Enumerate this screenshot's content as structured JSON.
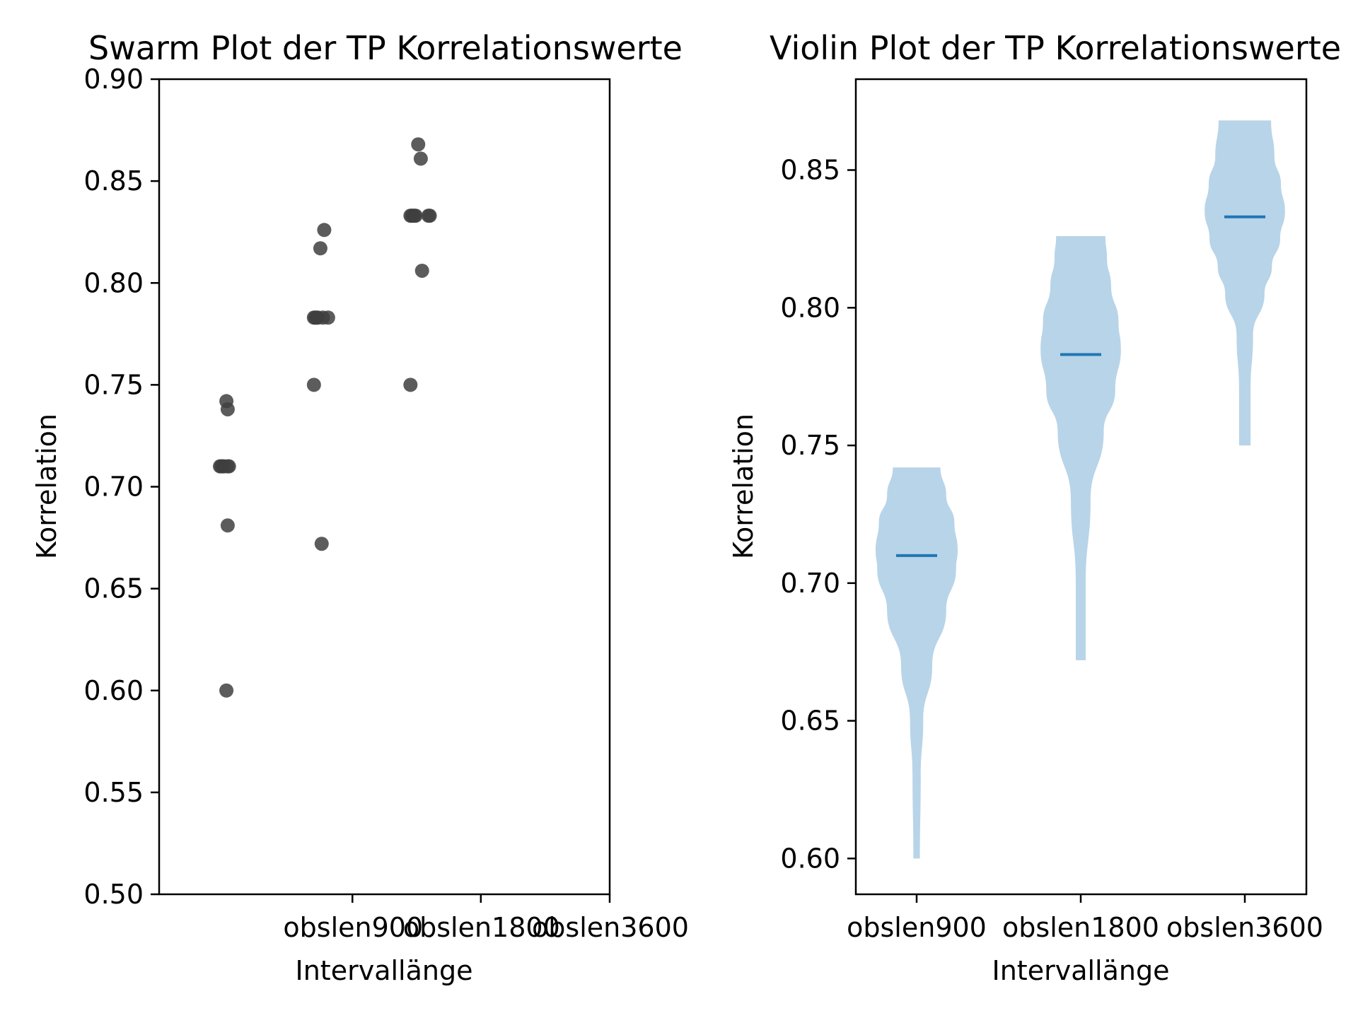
{
  "chart_data": [
    {
      "type": "scatter",
      "subtype": "swarm",
      "title": "Swarm Plot der TP Korrelationswerte",
      "xlabel": "Intervallänge",
      "ylabel": "Korrelation",
      "ylim": [
        0.5,
        0.9
      ],
      "yticks": [
        "0.50",
        "0.55",
        "0.60",
        "0.65",
        "0.70",
        "0.75",
        "0.80",
        "0.85",
        "0.90"
      ],
      "xticks": [
        "obslen900",
        "obslen1800",
        "obslen3600"
      ],
      "marker_color": "#404040",
      "series": [
        {
          "name": "obslen900",
          "points": [
            {
              "x": 0.26,
              "y": 0.742
            },
            {
              "x": 0.27,
              "y": 0.738
            },
            {
              "x": 0.21,
              "y": 0.71
            },
            {
              "x": 0.22,
              "y": 0.71
            },
            {
              "x": 0.23,
              "y": 0.71
            },
            {
              "x": 0.24,
              "y": 0.71
            },
            {
              "x": 0.27,
              "y": 0.71
            },
            {
              "x": 0.28,
              "y": 0.71
            },
            {
              "x": 0.27,
              "y": 0.681
            },
            {
              "x": 0.26,
              "y": 0.6
            }
          ]
        },
        {
          "name": "obslen1800",
          "points": [
            {
              "x": 1.02,
              "y": 0.826
            },
            {
              "x": 0.99,
              "y": 0.817
            },
            {
              "x": 0.94,
              "y": 0.783
            },
            {
              "x": 0.95,
              "y": 0.783
            },
            {
              "x": 0.96,
              "y": 0.783
            },
            {
              "x": 0.97,
              "y": 0.783
            },
            {
              "x": 1.01,
              "y": 0.783
            },
            {
              "x": 1.05,
              "y": 0.783
            },
            {
              "x": 0.94,
              "y": 0.75
            },
            {
              "x": 1.0,
              "y": 0.672
            }
          ]
        },
        {
          "name": "obslen3600",
          "points": [
            {
              "x": 1.75,
              "y": 0.868
            },
            {
              "x": 1.77,
              "y": 0.861
            },
            {
              "x": 1.69,
              "y": 0.833
            },
            {
              "x": 1.7,
              "y": 0.833
            },
            {
              "x": 1.71,
              "y": 0.833
            },
            {
              "x": 1.72,
              "y": 0.833
            },
            {
              "x": 1.73,
              "y": 0.833
            },
            {
              "x": 1.83,
              "y": 0.833
            },
            {
              "x": 1.84,
              "y": 0.833
            },
            {
              "x": 1.78,
              "y": 0.806
            },
            {
              "x": 1.69,
              "y": 0.75
            }
          ]
        }
      ],
      "xlim": [
        -1.0,
        2.5
      ],
      "xtick_positions": [
        1,
        2,
        3
      ],
      "xtick_data_positions": [
        1.0,
        2.0,
        3.0
      ]
    },
    {
      "type": "violin",
      "title": "Violin Plot der TP Korrelationswerte",
      "xlabel": "Intervallänge",
      "ylabel": "Korrelation",
      "ylim": [
        0.587,
        0.883
      ],
      "yticks": [
        "0.60",
        "0.65",
        "0.70",
        "0.75",
        "0.80",
        "0.85"
      ],
      "xticks": [
        "obslen900",
        "obslen1800",
        "obslen3600"
      ],
      "body_color": "#b8d4e8",
      "median_color": "#1f77b4",
      "violins": [
        {
          "name": "obslen900",
          "min": 0.6,
          "max": 0.742,
          "median": 0.71,
          "profile": [
            [
              0.6,
              0.04
            ],
            [
              0.63,
              0.05
            ],
            [
              0.65,
              0.08
            ],
            [
              0.67,
              0.19
            ],
            [
              0.69,
              0.36
            ],
            [
              0.705,
              0.48
            ],
            [
              0.712,
              0.5
            ],
            [
              0.722,
              0.46
            ],
            [
              0.732,
              0.36
            ],
            [
              0.742,
              0.29
            ]
          ]
        },
        {
          "name": "obslen1800",
          "min": 0.672,
          "max": 0.826,
          "median": 0.783,
          "profile": [
            [
              0.672,
              0.06
            ],
            [
              0.7,
              0.06
            ],
            [
              0.73,
              0.12
            ],
            [
              0.755,
              0.28
            ],
            [
              0.77,
              0.42
            ],
            [
              0.785,
              0.49
            ],
            [
              0.795,
              0.46
            ],
            [
              0.808,
              0.37
            ],
            [
              0.818,
              0.32
            ],
            [
              0.826,
              0.3
            ]
          ]
        },
        {
          "name": "obslen3600",
          "min": 0.75,
          "max": 0.868,
          "median": 0.833,
          "profile": [
            [
              0.75,
              0.07
            ],
            [
              0.77,
              0.07
            ],
            [
              0.79,
              0.1
            ],
            [
              0.805,
              0.24
            ],
            [
              0.815,
              0.33
            ],
            [
              0.825,
              0.43
            ],
            [
              0.835,
              0.49
            ],
            [
              0.845,
              0.44
            ],
            [
              0.855,
              0.36
            ],
            [
              0.868,
              0.32
            ]
          ]
        }
      ]
    }
  ]
}
